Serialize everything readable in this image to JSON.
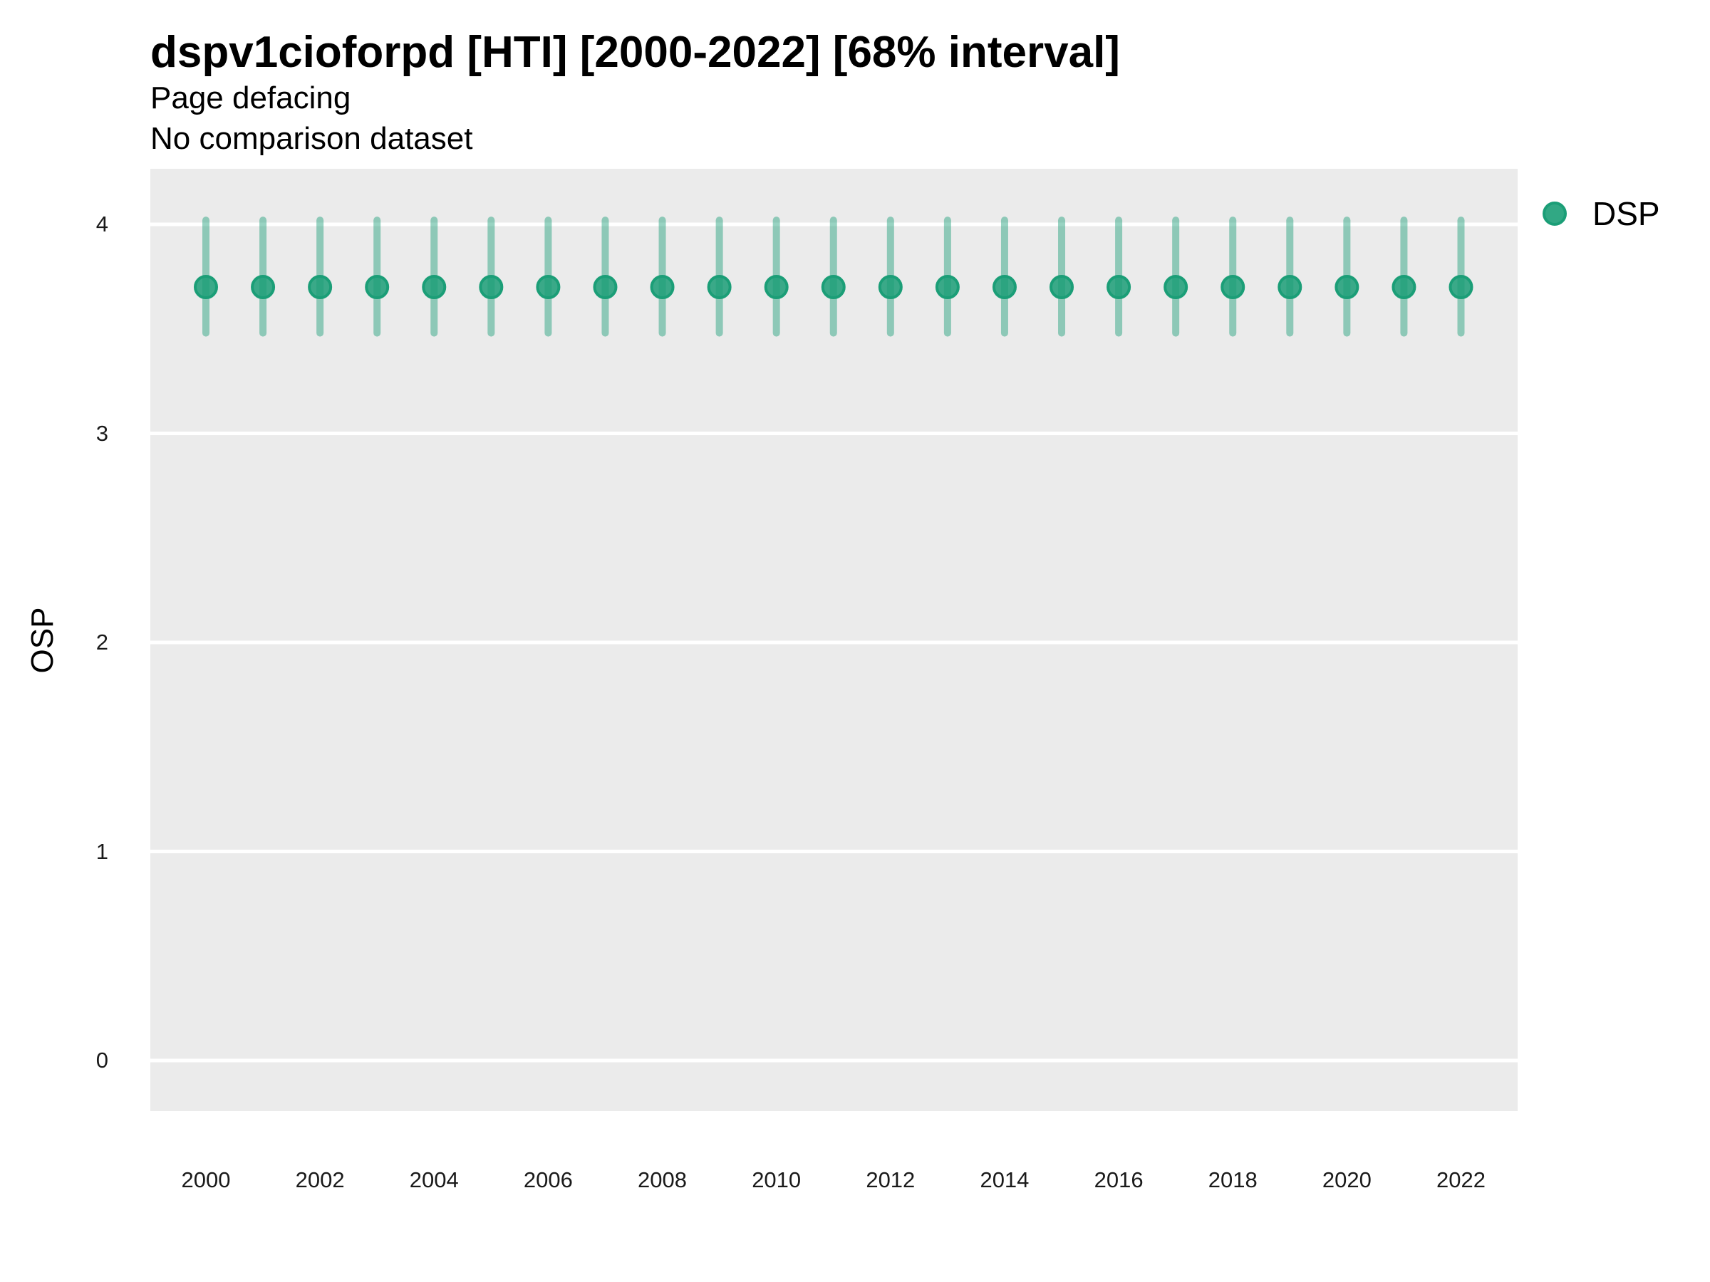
{
  "chart_data": {
    "type": "scatter",
    "title": "dspv1cioforpd [HTI] [2000-2022] [68% interval]",
    "subtitle": "Page defacing",
    "comparison_note": "No comparison dataset",
    "xlabel": "",
    "ylabel": "OSP",
    "legend_position": "right",
    "grid": "horizontal-major-only",
    "x": [
      2000,
      2001,
      2002,
      2003,
      2004,
      2005,
      2006,
      2007,
      2008,
      2009,
      2010,
      2011,
      2012,
      2013,
      2014,
      2015,
      2016,
      2017,
      2018,
      2019,
      2020,
      2021,
      2022
    ],
    "series": [
      {
        "name": "DSP",
        "mean": [
          3.7,
          3.7,
          3.7,
          3.7,
          3.7,
          3.7,
          3.7,
          3.7,
          3.7,
          3.7,
          3.7,
          3.7,
          3.7,
          3.7,
          3.7,
          3.7,
          3.7,
          3.7,
          3.7,
          3.7,
          3.7,
          3.7,
          3.7
        ],
        "lower": [
          3.48,
          3.48,
          3.48,
          3.48,
          3.48,
          3.48,
          3.48,
          3.48,
          3.48,
          3.48,
          3.48,
          3.48,
          3.48,
          3.48,
          3.48,
          3.48,
          3.48,
          3.48,
          3.48,
          3.48,
          3.48,
          3.48,
          3.48
        ],
        "upper": [
          4.02,
          4.02,
          4.02,
          4.02,
          4.02,
          4.02,
          4.02,
          4.02,
          4.02,
          4.02,
          4.02,
          4.02,
          4.02,
          4.02,
          4.02,
          4.02,
          4.02,
          4.02,
          4.02,
          4.02,
          4.02,
          4.02,
          4.02
        ]
      }
    ],
    "interval_level": "68%",
    "yticks": [
      0,
      1,
      2,
      3,
      4
    ],
    "xticks": [
      2000,
      2002,
      2004,
      2006,
      2008,
      2010,
      2012,
      2014,
      2016,
      2018,
      2020,
      2022
    ],
    "ylim": [
      -0.24,
      4.26
    ],
    "colors": {
      "point": "#1B9E77",
      "point_fill_alpha": 0.85,
      "errorbar_alpha": 0.45,
      "panel_bg": "#EBEBEB",
      "gridline": "#FFFFFF"
    }
  }
}
